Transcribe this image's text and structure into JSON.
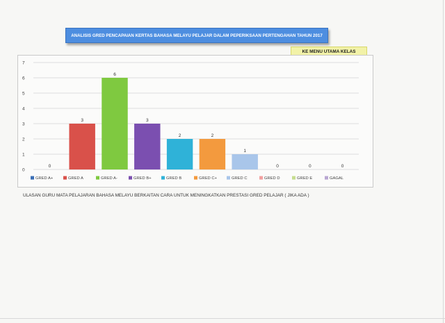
{
  "header": {
    "title": "ANALISIS GRED PENCAPAIAN KERTAS BAHASA MELAYU PELAJAR  DALAM PEPERIKSAAN PERTENGAHAN TAHUN 2017",
    "menu_button": "KE MENU UTAMA KELAS"
  },
  "note": "ULASAN GURU MATA PELAJARAN BAHASA MELAYU BERKAITAN CARA UNTUK MENINGKATKAN PRESTASI GRED PELAJAR ( JIKA ADA )",
  "chart_data": {
    "type": "bar",
    "categories": [
      "GRED A+",
      "GRED A",
      "GRED A-",
      "GRED B+",
      "GRED B",
      "GRED C+",
      "GRED C",
      "GRED D",
      "GRED E",
      "GAGAL"
    ],
    "values": [
      0,
      3,
      6,
      3,
      2,
      2,
      1,
      0,
      0,
      0
    ],
    "colors": [
      "#3b6fb6",
      "#d9514a",
      "#7fc940",
      "#7b4fb0",
      "#2fb2d8",
      "#f39a3e",
      "#a9c6ea",
      "#f2a0a0",
      "#c6dd8f",
      "#b9a7d2"
    ],
    "ylim": [
      0,
      7
    ],
    "yticks": [
      0,
      1,
      2,
      3,
      4,
      5,
      6,
      7
    ],
    "grid": true,
    "legend": "bottom",
    "title": "",
    "xlabel": "",
    "ylabel": ""
  }
}
